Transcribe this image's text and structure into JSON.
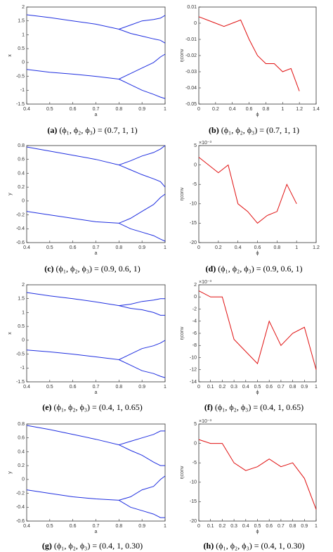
{
  "chart_data": [
    {
      "type": "line",
      "label": "(a)",
      "caption": "(ϕ₁, ϕ₂, ϕ₃) = (0.7, 1, 1)",
      "xlabel": "a",
      "ylabel": "x",
      "x": [
        0.4,
        0.5,
        0.6,
        0.7,
        0.8,
        0.85,
        0.9,
        0.95,
        0.98,
        1
      ],
      "series": [
        {
          "color": "#1f2fe0",
          "values": [
            1.72,
            1.62,
            1.5,
            1.38,
            1.2,
            1.35,
            1.5,
            1.55,
            1.6,
            1.7
          ]
        },
        {
          "color": "#1f2fe0",
          "values": [
            null,
            null,
            null,
            null,
            1.2,
            1.05,
            0.95,
            0.85,
            0.8,
            0.7
          ]
        },
        {
          "color": "#1f2fe0",
          "values": [
            -0.25,
            -0.35,
            -0.42,
            -0.5,
            -0.6,
            -0.4,
            -0.2,
            0,
            0.2,
            0.3
          ]
        },
        {
          "color": "#1f2fe0",
          "values": [
            null,
            null,
            null,
            null,
            -0.6,
            -0.8,
            -1,
            -1.15,
            -1.25,
            -1.3
          ]
        }
      ],
      "xlim": [
        0.4,
        1
      ],
      "xticks": [
        0.4,
        0.5,
        0.6,
        0.7,
        0.8,
        0.9,
        1
      ],
      "ylim": [
        -1.5,
        2
      ],
      "yticks": [
        -1.5,
        -1,
        -0.5,
        0,
        0.5,
        1,
        1.5,
        2
      ]
    },
    {
      "type": "line",
      "label": "(b)",
      "caption": "(ϕ₁, ϕ₂, ϕ₃) = (0.7, 1, 1)",
      "xlabel": "ϕ",
      "ylabel": "ηconv",
      "x": [
        0,
        0.1,
        0.2,
        0.3,
        0.4,
        0.5,
        0.6,
        0.7,
        0.8,
        0.9,
        1,
        1.1,
        1.2
      ],
      "series": [
        {
          "color": "#e01010",
          "values": [
            0.004,
            0.002,
            0,
            -0.002,
            0,
            0.002,
            -0.01,
            -0.02,
            -0.025,
            -0.025,
            -0.03,
            -0.028,
            -0.042
          ]
        }
      ],
      "xlim": [
        0,
        1.4
      ],
      "xticks": [
        0,
        0.2,
        0.4,
        0.6,
        0.8,
        1,
        1.2,
        1.4
      ],
      "ylim": [
        -0.05,
        0.01
      ],
      "yticks": [
        -0.05,
        -0.04,
        -0.03,
        -0.02,
        -0.01,
        0,
        0.01
      ]
    },
    {
      "type": "line",
      "label": "(c)",
      "caption": "(ϕ₁, ϕ₂, ϕ₃) = (0.9, 0.6, 1)",
      "xlabel": "a",
      "ylabel": "y",
      "x": [
        0.4,
        0.5,
        0.6,
        0.7,
        0.8,
        0.85,
        0.9,
        0.95,
        0.98,
        1
      ],
      "series": [
        {
          "color": "#1f2fe0",
          "values": [
            0.78,
            0.72,
            0.66,
            0.6,
            0.52,
            0.58,
            0.65,
            0.7,
            0.75,
            0.8
          ]
        },
        {
          "color": "#1f2fe0",
          "values": [
            null,
            null,
            null,
            null,
            0.52,
            0.45,
            0.38,
            0.32,
            0.28,
            0.2
          ]
        },
        {
          "color": "#1f2fe0",
          "values": [
            -0.15,
            -0.2,
            -0.25,
            -0.3,
            -0.32,
            -0.25,
            -0.15,
            -0.05,
            0.05,
            0.1
          ]
        },
        {
          "color": "#1f2fe0",
          "values": [
            null,
            null,
            null,
            null,
            -0.32,
            -0.4,
            -0.45,
            -0.5,
            -0.55,
            -0.58
          ]
        }
      ],
      "xlim": [
        0.4,
        1
      ],
      "xticks": [
        0.4,
        0.5,
        0.6,
        0.7,
        0.8,
        0.9,
        1
      ],
      "ylim": [
        -0.6,
        0.8
      ],
      "yticks": [
        -0.6,
        -0.4,
        -0.2,
        0,
        0.2,
        0.4,
        0.6,
        0.8
      ]
    },
    {
      "type": "line",
      "label": "(d)",
      "caption": "(ϕ₁, ϕ₂, ϕ₃) = (0.9, 0.6, 1)",
      "xlabel": "ϕ",
      "ylabel": "ηconv",
      "y_multiplier": "×10⁻³",
      "x": [
        0,
        0.1,
        0.2,
        0.3,
        0.4,
        0.5,
        0.6,
        0.7,
        0.8,
        0.9,
        1
      ],
      "series": [
        {
          "color": "#e01010",
          "values": [
            2,
            0,
            -2,
            0,
            -10,
            -12,
            -15,
            -13,
            -12,
            -5,
            -10
          ]
        }
      ],
      "xlim": [
        0,
        1.2
      ],
      "xticks": [
        0,
        0.2,
        0.4,
        0.6,
        0.8,
        1,
        1.2
      ],
      "ylim": [
        -20,
        5
      ],
      "yticks": [
        -20,
        -15,
        -10,
        -5,
        0,
        5
      ]
    },
    {
      "type": "line",
      "label": "(e)",
      "caption": "(ϕ₁, ϕ₂, ϕ₃) = (0.4, 1, 0.65)",
      "xlabel": "a",
      "ylabel": "x",
      "x": [
        0.4,
        0.5,
        0.6,
        0.7,
        0.8,
        0.85,
        0.9,
        0.95,
        0.98,
        1
      ],
      "series": [
        {
          "color": "#1f2fe0",
          "values": [
            1.72,
            1.6,
            1.5,
            1.38,
            1.25,
            1.3,
            1.4,
            1.45,
            1.5,
            1.5
          ]
        },
        {
          "color": "#1f2fe0",
          "values": [
            null,
            null,
            null,
            null,
            1.25,
            1.15,
            1.1,
            1,
            0.9,
            0.9
          ]
        },
        {
          "color": "#1f2fe0",
          "values": [
            -0.35,
            -0.42,
            -0.5,
            -0.6,
            -0.7,
            -0.5,
            -0.3,
            -0.2,
            -0.1,
            0
          ]
        },
        {
          "color": "#1f2fe0",
          "values": [
            null,
            null,
            null,
            null,
            -0.7,
            -0.9,
            -1.1,
            -1.2,
            -1.3,
            -1.35
          ]
        }
      ],
      "xlim": [
        0.4,
        1
      ],
      "xticks": [
        0.4,
        0.5,
        0.6,
        0.7,
        0.8,
        0.9,
        1
      ],
      "ylim": [
        -1.5,
        2
      ],
      "yticks": [
        -1.5,
        -1,
        -0.5,
        0,
        0.5,
        1,
        1.5,
        2
      ]
    },
    {
      "type": "line",
      "label": "(f)",
      "caption": "(ϕ₁, ϕ₂, ϕ₃) = (0.4, 1, 0.65)",
      "xlabel": "ϕ",
      "ylabel": "ηconv",
      "y_multiplier": "×10⁻³",
      "x": [
        0,
        0.1,
        0.2,
        0.3,
        0.4,
        0.5,
        0.6,
        0.7,
        0.8,
        0.9,
        1
      ],
      "series": [
        {
          "color": "#e01010",
          "values": [
            1,
            0,
            0,
            -7,
            -9,
            -11,
            -4,
            -8,
            -6,
            -5,
            -12
          ]
        }
      ],
      "xlim": [
        0,
        1
      ],
      "xticks": [
        0,
        0.1,
        0.2,
        0.3,
        0.4,
        0.5,
        0.6,
        0.7,
        0.8,
        0.9,
        1
      ],
      "ylim": [
        -14,
        2
      ],
      "yticks": [
        -14,
        -12,
        -10,
        -8,
        -6,
        -4,
        -2,
        0,
        2
      ]
    },
    {
      "type": "line",
      "label": "(g)",
      "caption": "(ϕ₁, ϕ₂, ϕ₃) = (0.4, 1, 0.30)",
      "xlabel": "a",
      "ylabel": "y",
      "x": [
        0.4,
        0.5,
        0.6,
        0.7,
        0.8,
        0.85,
        0.9,
        0.95,
        0.98,
        1
      ],
      "series": [
        {
          "color": "#1f2fe0",
          "values": [
            0.78,
            0.72,
            0.65,
            0.58,
            0.5,
            0.55,
            0.6,
            0.65,
            0.7,
            0.7
          ]
        },
        {
          "color": "#1f2fe0",
          "values": [
            null,
            null,
            null,
            null,
            0.5,
            0.42,
            0.35,
            0.25,
            0.2,
            0.2
          ]
        },
        {
          "color": "#1f2fe0",
          "values": [
            -0.15,
            -0.2,
            -0.25,
            -0.28,
            -0.3,
            -0.25,
            -0.15,
            -0.1,
            0,
            0.05
          ]
        },
        {
          "color": "#1f2fe0",
          "values": [
            null,
            null,
            null,
            null,
            -0.3,
            -0.4,
            -0.45,
            -0.5,
            -0.55,
            -0.55
          ]
        }
      ],
      "xlim": [
        0.4,
        1
      ],
      "xticks": [
        0.4,
        0.5,
        0.6,
        0.7,
        0.8,
        0.9,
        1
      ],
      "ylim": [
        -0.6,
        0.8
      ],
      "yticks": [
        -0.6,
        -0.4,
        -0.2,
        0,
        0.2,
        0.4,
        0.6,
        0.8
      ]
    },
    {
      "type": "line",
      "label": "(h)",
      "caption": "(ϕ₁, ϕ₂, ϕ₃) = (0.4, 1, 0.30)",
      "xlabel": "ϕ",
      "ylabel": "ηconv",
      "y_multiplier": "×10⁻³",
      "x": [
        0,
        0.1,
        0.2,
        0.3,
        0.4,
        0.5,
        0.6,
        0.7,
        0.8,
        0.9,
        1
      ],
      "series": [
        {
          "color": "#e01010",
          "values": [
            1,
            0,
            0,
            -5,
            -7,
            -6,
            -4,
            -6,
            -5,
            -9,
            -17
          ]
        }
      ],
      "xlim": [
        0,
        1
      ],
      "xticks": [
        0,
        0.1,
        0.2,
        0.3,
        0.4,
        0.5,
        0.6,
        0.7,
        0.8,
        0.9,
        1
      ],
      "ylim": [
        -20,
        5
      ],
      "yticks": [
        -20,
        -15,
        -10,
        -5,
        0,
        5
      ]
    }
  ]
}
